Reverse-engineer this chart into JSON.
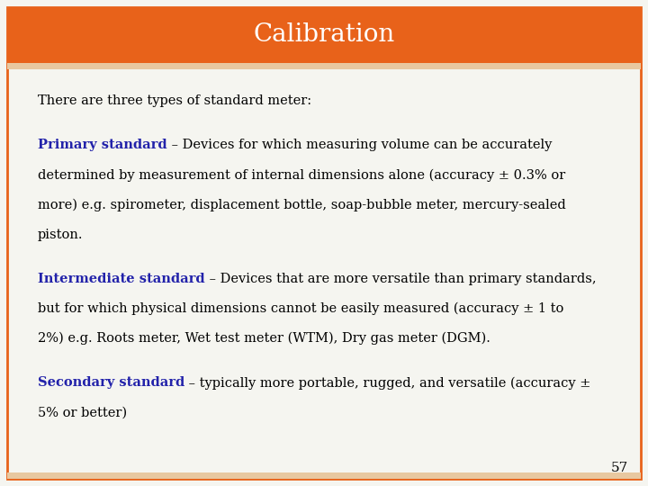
{
  "title": "Calibration",
  "title_color": "#FFFFFF",
  "title_bg_color": "#E8621A",
  "title_fontsize": 20,
  "background_color": "#F5F5F0",
  "border_color": "#E8621A",
  "accent_color": "#E8C8A0",
  "blue_color": "#2222AA",
  "body_fontsize": 10.5,
  "page_number": "57",
  "lines": [
    {
      "type": "normal",
      "text": "There are three types of standard meter:"
    },
    {
      "type": "blank",
      "size": 0.5
    },
    {
      "type": "mixed",
      "parts": [
        {
          "text": "Primary standard",
          "bold": true,
          "color": "#2222AA"
        },
        {
          "text": " – Devices for which measuring volume can be accurately",
          "bold": false,
          "color": "#000000"
        }
      ]
    },
    {
      "type": "normal",
      "text": "determined by measurement of internal dimensions alone (accuracy ± 0.3% or"
    },
    {
      "type": "normal",
      "text": "more) e.g. spirometer, displacement bottle, soap-bubble meter, mercury-sealed"
    },
    {
      "type": "normal",
      "text": "piston."
    },
    {
      "type": "blank",
      "size": 0.5
    },
    {
      "type": "mixed",
      "parts": [
        {
          "text": "Intermediate standard",
          "bold": true,
          "color": "#2222AA"
        },
        {
          "text": " – Devices that are more versatile than primary standards,",
          "bold": false,
          "color": "#000000"
        }
      ]
    },
    {
      "type": "normal",
      "text": "but for which physical dimensions cannot be easily measured (accuracy ± 1 to"
    },
    {
      "type": "normal",
      "text": "2%) e.g. Roots meter, Wet test meter (WTM), Dry gas meter (DGM)."
    },
    {
      "type": "blank",
      "size": 0.5
    },
    {
      "type": "mixed",
      "parts": [
        {
          "text": "Secondary standard",
          "bold": true,
          "color": "#2222AA"
        },
        {
          "text": " – typically more portable, rugged, and versatile (accuracy ±",
          "bold": false,
          "color": "#000000"
        }
      ]
    },
    {
      "type": "normal",
      "text": "5% or better)"
    }
  ]
}
